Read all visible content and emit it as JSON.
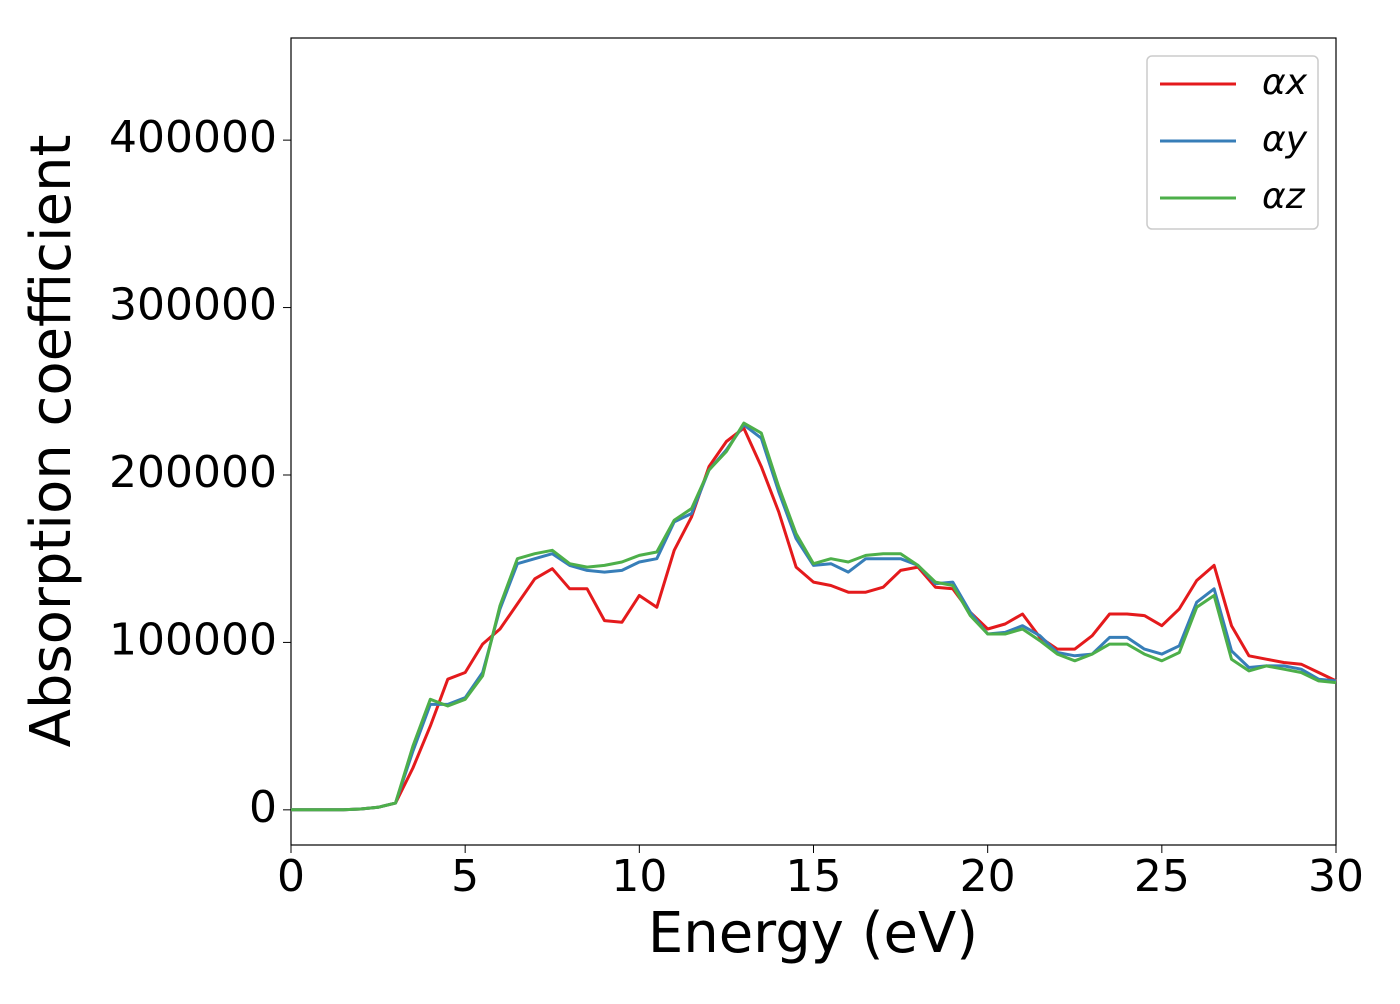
{
  "chart_data": {
    "type": "line",
    "xlabel": "Energy (eV)",
    "ylabel": "Absorption coefficient",
    "x": [
      0,
      0.5,
      1,
      1.5,
      2,
      2.5,
      3,
      3.5,
      4,
      4.5,
      5,
      5.5,
      6,
      6.5,
      7,
      7.5,
      8,
      8.5,
      9,
      9.5,
      10,
      10.5,
      11,
      11.5,
      12,
      12.5,
      13,
      13.5,
      14,
      14.5,
      15,
      15.5,
      16,
      16.5,
      17,
      17.5,
      18,
      18.5,
      19,
      19.5,
      20,
      20.5,
      21,
      21.5,
      22,
      22.5,
      23,
      23.5,
      24,
      24.5,
      25,
      25.5,
      26,
      26.5,
      27,
      27.5,
      28,
      28.5,
      29,
      29.5,
      30
    ],
    "series": [
      {
        "name": "αx",
        "color": "#e41a1c",
        "values": [
          0,
          0,
          0,
          0,
          500,
          1500,
          4000,
          25000,
          50000,
          78000,
          82000,
          99000,
          108000,
          123000,
          138000,
          144000,
          132000,
          132000,
          113000,
          112000,
          128000,
          121000,
          155000,
          175000,
          205000,
          220000,
          228000,
          205000,
          178000,
          145000,
          136000,
          134000,
          130000,
          130000,
          133000,
          143000,
          145000,
          133000,
          132000,
          118000,
          108000,
          111000,
          117000,
          103000,
          96000,
          96000,
          104000,
          117000,
          117000,
          116000,
          110000,
          120000,
          137000,
          146000,
          110000,
          92000,
          90000,
          88000,
          87000,
          82000,
          77000
        ]
      },
      {
        "name": "αy",
        "color": "#377eb8",
        "values": [
          0,
          0,
          0,
          0,
          500,
          1500,
          4000,
          35000,
          63000,
          63000,
          67000,
          82000,
          120000,
          147000,
          150000,
          153000,
          146000,
          143000,
          142000,
          143000,
          148000,
          150000,
          172000,
          177000,
          203000,
          215000,
          230000,
          222000,
          190000,
          162000,
          146000,
          147000,
          142000,
          150000,
          150000,
          150000,
          146000,
          135000,
          136000,
          118000,
          105000,
          106000,
          110000,
          104000,
          94000,
          92000,
          93000,
          103000,
          103000,
          96000,
          93000,
          98000,
          124000,
          132000,
          95000,
          85000,
          86000,
          86000,
          84000,
          78000,
          77000
        ]
      },
      {
        "name": "αz",
        "color": "#4daf4a",
        "values": [
          0,
          0,
          0,
          0,
          500,
          1500,
          4000,
          38000,
          66000,
          62000,
          66000,
          80000,
          122000,
          150000,
          153000,
          155000,
          147000,
          145000,
          146000,
          148000,
          152000,
          154000,
          173000,
          180000,
          203000,
          214000,
          231000,
          225000,
          193000,
          165000,
          147000,
          150000,
          148000,
          152000,
          153000,
          153000,
          146000,
          136000,
          134000,
          116000,
          105000,
          105000,
          108000,
          101000,
          93000,
          89000,
          93000,
          99000,
          99000,
          93000,
          89000,
          94000,
          121000,
          128000,
          90000,
          83000,
          86000,
          84000,
          82000,
          77000,
          76000
        ]
      }
    ],
    "xlim": [
      0,
      30
    ],
    "xticks": [
      0,
      5,
      10,
      15,
      20,
      25,
      30
    ],
    "ylim": [
      -21000,
      461000
    ],
    "yticks": [
      0,
      100000,
      200000,
      300000,
      400000
    ],
    "grid": false,
    "legend": "upper right"
  }
}
